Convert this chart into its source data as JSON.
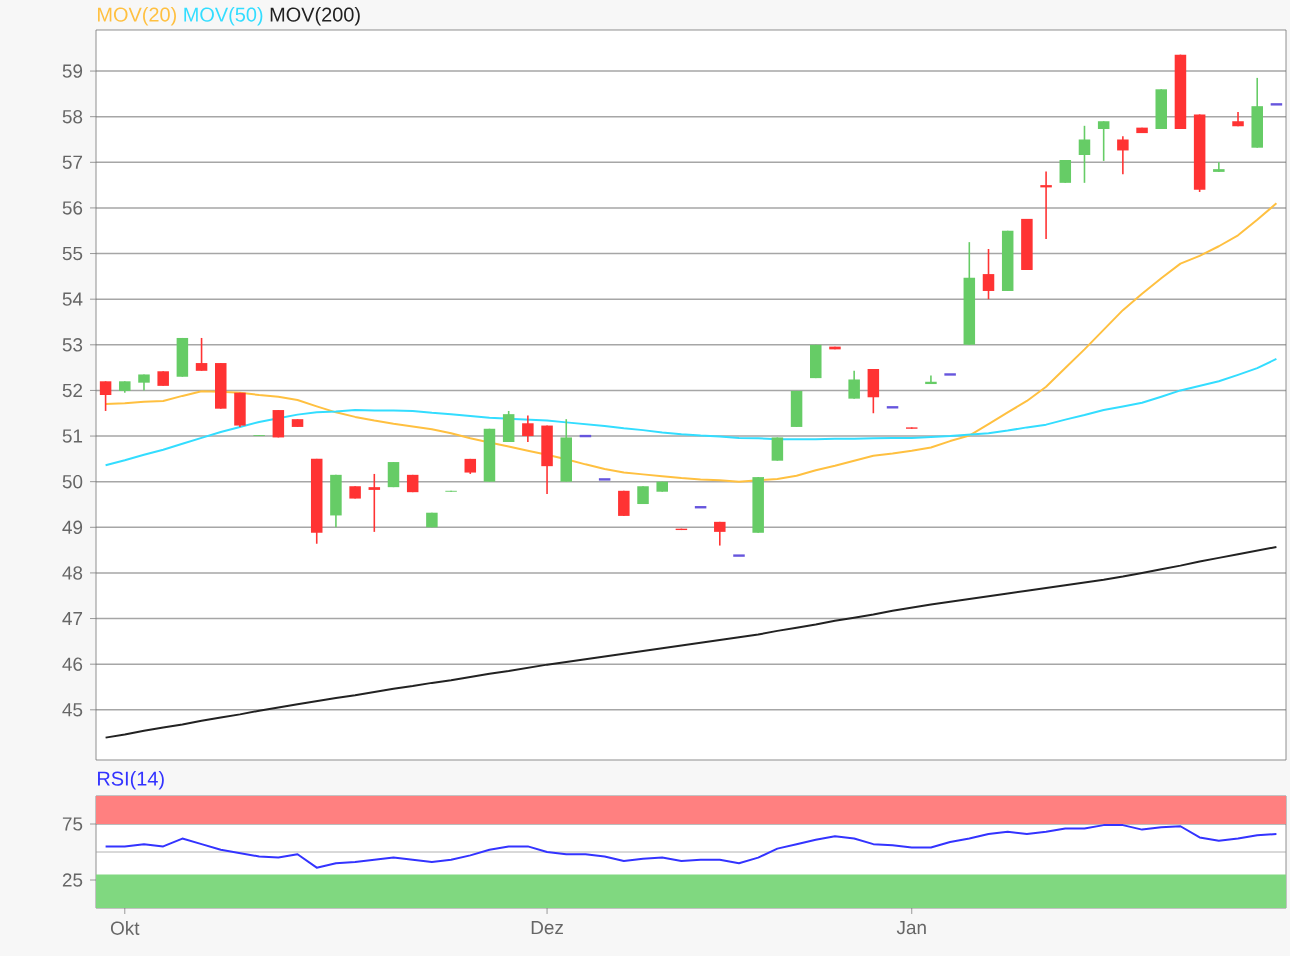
{
  "chart_data": [
    {
      "type": "candlestick",
      "categories": [
        null,
        null,
        null,
        null,
        null,
        null,
        null,
        null,
        null,
        null,
        null,
        null,
        null,
        null,
        null,
        null,
        null,
        null,
        null,
        null,
        null,
        null,
        null,
        null,
        null,
        null,
        null,
        null,
        null,
        null,
        null,
        null,
        null,
        null,
        null,
        null,
        null,
        null,
        null,
        null,
        null,
        null,
        null,
        null,
        null,
        null,
        null,
        null,
        null,
        null,
        null,
        null,
        null,
        null,
        null,
        null,
        null,
        null,
        null,
        null,
        null,
        null
      ],
      "ohlc": [
        [
          52.2,
          52.2,
          51.55,
          51.9
        ],
        [
          51.99,
          52.2,
          51.95,
          52.2
        ],
        [
          52.17,
          52.35,
          52.0,
          52.35
        ],
        [
          52.42,
          52.42,
          52.1,
          52.1
        ],
        [
          52.3,
          53.15,
          52.3,
          53.15
        ],
        [
          52.6,
          53.15,
          52.43,
          52.43
        ],
        [
          52.6,
          52.6,
          51.6,
          51.6
        ],
        [
          51.95,
          51.95,
          51.2,
          51.23
        ],
        [
          51.0,
          51.02,
          51.0,
          51.02
        ],
        [
          51.57,
          51.57,
          50.97,
          50.97
        ],
        [
          51.37,
          51.37,
          51.2,
          51.2
        ],
        [
          50.5,
          50.5,
          48.64,
          48.88
        ],
        [
          49.26,
          50.15,
          49.0,
          50.15
        ],
        [
          49.9,
          49.9,
          49.63,
          49.63
        ],
        [
          49.88,
          50.17,
          48.9,
          49.82
        ],
        [
          49.88,
          50.43,
          49.88,
          50.43
        ],
        [
          50.15,
          50.15,
          49.77,
          49.77
        ],
        [
          49.0,
          49.32,
          49.0,
          49.32
        ],
        [
          49.78,
          49.8,
          49.78,
          49.8
        ],
        [
          50.5,
          50.5,
          50.17,
          50.2
        ],
        [
          50.0,
          51.16,
          50.0,
          51.16
        ],
        [
          50.87,
          51.55,
          50.87,
          51.48
        ],
        [
          51.28,
          51.45,
          50.87,
          51.0
        ],
        [
          51.23,
          51.23,
          49.73,
          50.34
        ],
        [
          50.0,
          51.37,
          50.0,
          50.97
        ],
        [
          51.0,
          51.0,
          51.0,
          51.0
        ],
        [
          50.05,
          50.05,
          50.05,
          50.05
        ],
        [
          49.8,
          49.8,
          49.25,
          49.25
        ],
        [
          49.51,
          49.9,
          49.51,
          49.9
        ],
        [
          49.78,
          50.0,
          49.78,
          50.0
        ],
        [
          48.97,
          48.97,
          48.94,
          48.94
        ],
        [
          49.44,
          49.44,
          49.44,
          49.44
        ],
        [
          49.12,
          49.12,
          48.6,
          48.9
        ],
        [
          48.38,
          48.38,
          48.38,
          48.38
        ],
        [
          48.88,
          50.1,
          48.88,
          50.1
        ],
        [
          50.46,
          50.97,
          50.46,
          50.97
        ],
        [
          51.2,
          51.99,
          51.2,
          51.99
        ],
        [
          52.27,
          53.0,
          52.27,
          53.0
        ],
        [
          52.96,
          52.96,
          52.9,
          52.9
        ],
        [
          51.82,
          52.43,
          51.82,
          52.24
        ],
        [
          52.47,
          52.47,
          51.5,
          51.85
        ],
        [
          51.63,
          51.63,
          51.63,
          51.63
        ],
        [
          51.19,
          51.19,
          51.16,
          51.16
        ],
        [
          52.14,
          52.33,
          52.14,
          52.19
        ],
        [
          52.35,
          52.35,
          52.35,
          52.35
        ],
        [
          53.0,
          55.25,
          53.0,
          54.47
        ],
        [
          54.55,
          55.1,
          54.0,
          54.18
        ],
        [
          54.18,
          55.5,
          54.18,
          55.5
        ],
        [
          55.76,
          55.76,
          54.64,
          54.64
        ],
        [
          56.5,
          56.8,
          55.32,
          56.45
        ],
        [
          56.55,
          57.05,
          56.55,
          57.05
        ],
        [
          57.16,
          57.8,
          56.55,
          57.5
        ],
        [
          57.73,
          57.9,
          57.03,
          57.9
        ],
        [
          57.5,
          57.57,
          56.74,
          57.26
        ],
        [
          57.76,
          57.76,
          57.64,
          57.64
        ],
        [
          57.73,
          58.6,
          57.73,
          58.6
        ],
        [
          59.36,
          59.36,
          57.73,
          57.73
        ],
        [
          58.05,
          58.05,
          56.35,
          56.4
        ],
        [
          56.79,
          57.0,
          56.79,
          56.85
        ],
        [
          57.9,
          58.1,
          57.79,
          57.79
        ],
        [
          57.32,
          58.85,
          57.32,
          58.23
        ],
        [
          58.27,
          58.27,
          58.27,
          58.27
        ]
      ],
      "colors": [
        "#ff3333",
        "#66cc66",
        "#66cc66",
        "#ff3333",
        "#66cc66",
        "#ff3333",
        "#ff3333",
        "#ff3333",
        "#66cc66",
        "#ff3333",
        "#ff3333",
        "#ff3333",
        "#66cc66",
        "#ff3333",
        "#ff3333",
        "#66cc66",
        "#ff3333",
        "#66cc66",
        "#66cc66",
        "#ff3333",
        "#66cc66",
        "#66cc66",
        "#ff3333",
        "#ff3333",
        "#66cc66",
        "#6655dd",
        "#6655dd",
        "#ff3333",
        "#66cc66",
        "#66cc66",
        "#ff3333",
        "#6655dd",
        "#ff3333",
        "#6655dd",
        "#66cc66",
        "#66cc66",
        "#66cc66",
        "#66cc66",
        "#ff3333",
        "#66cc66",
        "#ff3333",
        "#6655dd",
        "#ff3333",
        "#66cc66",
        "#6655dd",
        "#66cc66",
        "#ff3333",
        "#66cc66",
        "#ff3333",
        "#ff3333",
        "#66cc66",
        "#66cc66",
        "#66cc66",
        "#ff3333",
        "#ff3333",
        "#66cc66",
        "#ff3333",
        "#ff3333",
        "#66cc66",
        "#ff3333",
        "#66cc66",
        "#6655dd"
      ],
      "series": [
        {
          "name": "MOV(20)",
          "type": "line",
          "color": "#ffc040",
          "values": [
            51.7,
            51.72,
            51.75,
            51.77,
            51.88,
            51.98,
            51.97,
            51.95,
            51.9,
            51.86,
            51.79,
            51.65,
            51.52,
            51.42,
            51.34,
            51.27,
            51.21,
            51.15,
            51.06,
            50.95,
            50.86,
            50.77,
            50.68,
            50.59,
            50.49,
            50.38,
            50.28,
            50.2,
            50.16,
            50.12,
            50.08,
            50.05,
            50.03,
            50.0,
            50.03,
            50.06,
            50.13,
            50.25,
            50.35,
            50.46,
            50.57,
            50.62,
            50.68,
            50.75,
            50.89,
            51.01,
            51.26,
            51.52,
            51.77,
            52.08,
            52.49,
            52.9,
            53.33,
            53.76,
            54.12,
            54.46,
            54.78,
            54.95,
            55.16,
            55.4,
            55.74,
            56.1
          ]
        },
        {
          "name": "MOV(50)",
          "type": "line",
          "color": "#33ddff",
          "values": [
            50.36,
            50.47,
            50.59,
            50.7,
            50.83,
            50.96,
            51.09,
            51.2,
            51.31,
            51.39,
            51.47,
            51.52,
            51.54,
            51.57,
            51.56,
            51.56,
            51.55,
            51.51,
            51.48,
            51.44,
            51.4,
            51.38,
            51.36,
            51.34,
            51.3,
            51.26,
            51.22,
            51.17,
            51.13,
            51.08,
            51.04,
            51.01,
            50.99,
            50.96,
            50.95,
            50.93,
            50.93,
            50.93,
            50.94,
            50.94,
            50.95,
            50.96,
            50.96,
            50.98,
            51.0,
            51.03,
            51.06,
            51.12,
            51.19,
            51.25,
            51.36,
            51.46,
            51.57,
            51.65,
            51.73,
            51.86,
            52.0,
            52.1,
            52.2,
            52.34,
            52.49,
            52.69
          ]
        },
        {
          "name": "MOV(200)",
          "type": "line",
          "color": "#222222",
          "values": [
            44.39,
            44.46,
            44.54,
            44.61,
            44.68,
            44.76,
            44.83,
            44.9,
            44.98,
            45.05,
            45.12,
            45.19,
            45.26,
            45.32,
            45.39,
            45.46,
            45.52,
            45.59,
            45.65,
            45.72,
            45.79,
            45.85,
            45.92,
            45.99,
            46.05,
            46.11,
            46.17,
            46.23,
            46.29,
            46.35,
            46.41,
            46.47,
            46.53,
            46.59,
            46.65,
            46.73,
            46.8,
            46.87,
            46.95,
            47.02,
            47.09,
            47.17,
            47.24,
            47.31,
            47.37,
            47.43,
            47.49,
            47.55,
            47.61,
            47.67,
            47.73,
            47.79,
            47.85,
            47.92,
            48.0,
            48.08,
            48.16,
            48.25,
            48.33,
            48.41,
            48.49,
            48.57
          ]
        }
      ],
      "ylim": [
        43.9,
        59.9
      ],
      "yticks": [
        45,
        46,
        47,
        48,
        49,
        50,
        51,
        52,
        53,
        54,
        55,
        56,
        57,
        58,
        59
      ],
      "grid": "y",
      "legend": "top left",
      "tick_labels": "y"
    },
    {
      "type": "line",
      "title": "RSI(14)",
      "categories": [
        null,
        "Okt",
        null,
        null,
        null,
        null,
        null,
        null,
        null,
        null,
        null,
        null,
        null,
        null,
        null,
        null,
        null,
        null,
        null,
        null,
        null,
        null,
        null,
        "Dez",
        null,
        null,
        null,
        null,
        null,
        null,
        null,
        null,
        null,
        null,
        null,
        null,
        null,
        null,
        null,
        null,
        null,
        null,
        "Jan",
        null,
        null,
        null,
        null,
        null,
        null,
        null,
        null,
        null,
        null,
        null,
        null,
        null,
        null,
        null,
        null,
        null,
        null,
        null
      ],
      "series": [
        {
          "color": "#3333ff",
          "values": [
            55,
            55,
            57,
            55,
            62,
            57,
            52,
            49,
            46,
            45,
            48,
            36,
            40,
            41,
            43,
            45,
            43,
            41,
            43,
            47,
            52,
            55,
            55,
            50,
            48,
            48,
            46,
            42,
            44,
            45,
            42,
            43,
            43,
            40,
            45,
            53,
            57,
            61,
            64,
            62,
            57,
            56,
            54,
            54,
            59,
            62,
            66,
            68,
            66,
            68,
            71,
            71,
            74,
            74,
            70,
            72,
            73,
            63,
            60,
            62,
            65,
            66
          ]
        }
      ],
      "ylim": [
        0,
        100
      ],
      "yticks": [
        25,
        75
      ],
      "bands": [
        {
          "axis": "y",
          "from": 75,
          "to": 100,
          "color": "#ff8080"
        },
        {
          "axis": "y",
          "from": 0,
          "to": 30,
          "color": "#80d880"
        }
      ],
      "ref_lines": [
        {
          "axis": "y",
          "value": 50,
          "color": "#a0a0a0"
        }
      ],
      "grid": "y"
    }
  ]
}
